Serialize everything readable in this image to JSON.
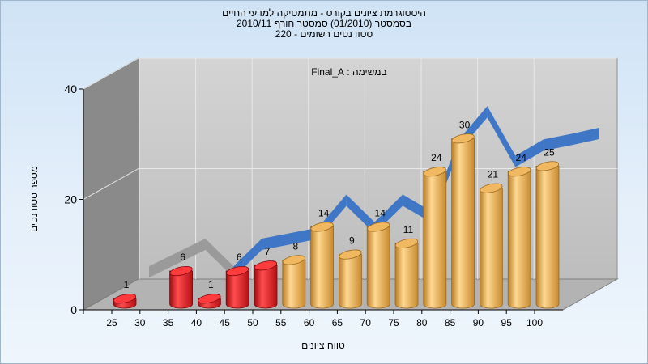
{
  "chart_data": {
    "type": "bar",
    "title_lines": [
      "היסטוגרמת ציונים בקורס - מתמטיקה למדעי החיים",
      "בסמסטר  (01/2010)  סמסטר חורף  2010/11",
      "סטודנטים רשומים - 220"
    ],
    "annotation": "במשימה : Final_A",
    "xlabel": "טווח ציונים",
    "ylabel": "מספר סטודנטים",
    "x_ticks": [
      "25",
      "30",
      "35",
      "40",
      "45",
      "50",
      "55",
      "60",
      "65",
      "70",
      "75",
      "80",
      "85",
      "90",
      "95",
      "100"
    ],
    "y_ticks": [
      "0",
      "20",
      "40"
    ],
    "ylim": [
      0,
      40
    ],
    "grid": true,
    "series": [
      {
        "values": [
          1,
          null,
          6,
          1,
          6,
          7,
          8,
          14,
          9,
          14,
          11,
          24,
          30,
          21,
          24,
          25
        ],
        "data_labels": [
          "1",
          "",
          "6",
          "1",
          "6",
          "7",
          "8",
          "14",
          "9",
          "14",
          "11",
          "24",
          "30",
          "21",
          "24",
          "25"
        ]
      }
    ],
    "bar_colors": [
      "red",
      "red",
      "red",
      "red",
      "red",
      "red",
      "gold",
      "gold",
      "gold",
      "gold",
      "gold",
      "gold",
      "gold",
      "gold",
      "gold",
      "gold"
    ],
    "colors": {
      "red_bar": "#e3161b",
      "gold_bar": "#e8a84a",
      "ribbon": "#3f77c6",
      "wall": "#c9c9c9",
      "left_wall": "#8c8c8c"
    }
  }
}
